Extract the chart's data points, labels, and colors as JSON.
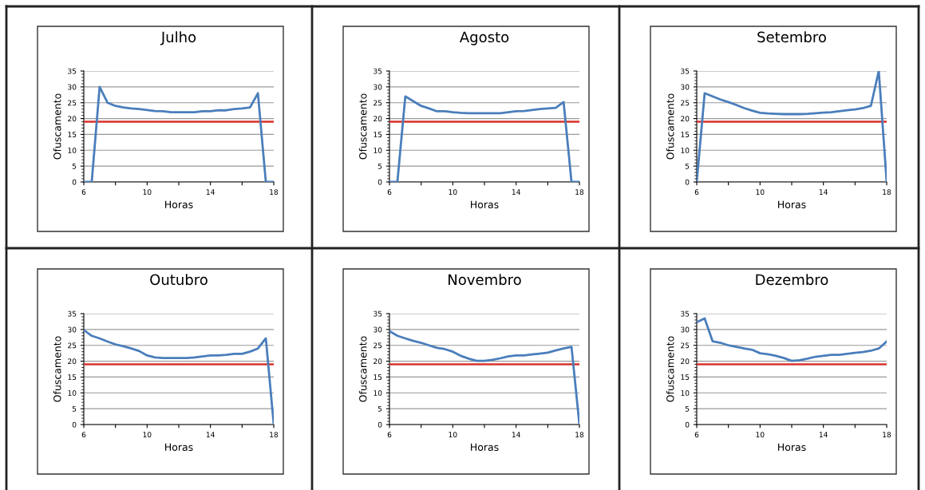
{
  "chart_data": [
    {
      "type": "line",
      "title": "Julho",
      "xlabel": "Horas",
      "ylabel": "Ofuscamento",
      "x": [
        6,
        6.5,
        7,
        7.5,
        8,
        8.5,
        9,
        9.5,
        10,
        10.5,
        11,
        11.5,
        12,
        12.5,
        13,
        13.5,
        14,
        14.5,
        15,
        15.5,
        16,
        16.5,
        17,
        17.5,
        18
      ],
      "series": [
        {
          "color": "#4a7ebb",
          "values": [
            0,
            0,
            30,
            25,
            24,
            23.5,
            23.2,
            23,
            22.7,
            22.4,
            22.3,
            22,
            22,
            22,
            22,
            22.3,
            22.3,
            22.6,
            22.6,
            23,
            23.2,
            23.5,
            28,
            0,
            0
          ]
        }
      ],
      "xlim": [
        6,
        18
      ],
      "xticks": [
        6,
        {
          "value": 8,
          "label": null
        },
        10,
        {
          "value": 12,
          "label": null
        },
        14,
        {
          "value": 16,
          "label": null
        },
        18
      ],
      "ylim": [
        0,
        35
      ],
      "yticks": [
        0,
        5,
        10,
        15,
        20,
        25,
        30,
        35
      ],
      "grid": "y",
      "marker": "none",
      "ref_lines": [
        {
          "axis": "y",
          "value": 19,
          "color": "#d9302a"
        }
      ]
    },
    {
      "type": "line",
      "title": "Agosto",
      "xlabel": "Horas",
      "ylabel": "Ofuscamento",
      "x": [
        6,
        6.5,
        7,
        7.5,
        8,
        8.5,
        9,
        9.5,
        10,
        10.5,
        11,
        11.5,
        12,
        12.5,
        13,
        13.5,
        14,
        14.5,
        15,
        15.5,
        16,
        16.5,
        17,
        17.5,
        18
      ],
      "series": [
        {
          "color": "#4a7ebb",
          "values": [
            0,
            0,
            27,
            25.5,
            24,
            23.2,
            22.3,
            22.3,
            22,
            21.8,
            21.7,
            21.7,
            21.7,
            21.7,
            21.7,
            22,
            22.3,
            22.4,
            22.7,
            23,
            23.2,
            23.4,
            25.2,
            0,
            0
          ]
        }
      ],
      "xlim": [
        6,
        18
      ],
      "xticks": [
        6,
        {
          "value": 8,
          "label": null
        },
        10,
        {
          "value": 12,
          "label": null
        },
        14,
        {
          "value": 16,
          "label": null
        },
        18
      ],
      "ylim": [
        0,
        35
      ],
      "yticks": [
        0,
        5,
        10,
        15,
        20,
        25,
        30,
        35
      ],
      "grid": "y",
      "marker": "none",
      "ref_lines": [
        {
          "axis": "y",
          "value": 19,
          "color": "#d9302a"
        }
      ]
    },
    {
      "type": "line",
      "title": "Setembro",
      "xlabel": "Horas",
      "ylabel": "Ofuscamento",
      "x": [
        6,
        6.5,
        7,
        7.5,
        8,
        8.5,
        9,
        9.5,
        10,
        10.5,
        11,
        11.5,
        12,
        12.5,
        13,
        13.5,
        14,
        14.5,
        15,
        15.5,
        16,
        16.5,
        17,
        17.5,
        18
      ],
      "series": [
        {
          "color": "#4a7ebb",
          "values": [
            0,
            28,
            27,
            26,
            25.2,
            24.3,
            23.3,
            22.5,
            21.8,
            21.6,
            21.5,
            21.4,
            21.4,
            21.4,
            21.5,
            21.7,
            21.9,
            22,
            22.3,
            22.6,
            22.9,
            23.3,
            24,
            35,
            0
          ]
        }
      ],
      "xlim": [
        6,
        18
      ],
      "xticks": [
        6,
        {
          "value": 8,
          "label": null
        },
        10,
        {
          "value": 12,
          "label": null
        },
        14,
        {
          "value": 16,
          "label": null
        },
        18
      ],
      "ylim": [
        0,
        35
      ],
      "yticks": [
        0,
        5,
        10,
        15,
        20,
        25,
        30,
        35
      ],
      "grid": "y",
      "marker": "none",
      "ref_lines": [
        {
          "axis": "y",
          "value": 19,
          "color": "#d9302a"
        }
      ]
    },
    {
      "type": "line",
      "title": "Outubro",
      "xlabel": "Horas",
      "ylabel": "Ofuscamento",
      "x": [
        6,
        6.5,
        7,
        7.5,
        8,
        8.5,
        9,
        9.5,
        10,
        10.5,
        11,
        11.5,
        12,
        12.5,
        13,
        13.5,
        14,
        14.5,
        15,
        15.5,
        16,
        16.5,
        17,
        17.5,
        18
      ],
      "series": [
        {
          "color": "#4a7ebb",
          "values": [
            29.8,
            28,
            27.2,
            26.2,
            25.3,
            24.7,
            24,
            23.2,
            21.8,
            21.2,
            21,
            21,
            21,
            21,
            21.2,
            21.5,
            21.8,
            21.8,
            22,
            22.3,
            22.3,
            23,
            24,
            27.2,
            0
          ]
        }
      ],
      "xlim": [
        6,
        18
      ],
      "xticks": [
        6,
        {
          "value": 8,
          "label": null
        },
        10,
        {
          "value": 12,
          "label": null
        },
        14,
        {
          "value": 16,
          "label": null
        },
        18
      ],
      "ylim": [
        0,
        35
      ],
      "yticks": [
        0,
        5,
        10,
        15,
        20,
        25,
        30,
        35
      ],
      "grid": "y",
      "marker": "none",
      "ref_lines": [
        {
          "axis": "y",
          "value": 19,
          "color": "#d9302a"
        }
      ]
    },
    {
      "type": "line",
      "title": "Novembro",
      "xlabel": "Horas",
      "ylabel": "Ofuscamento",
      "x": [
        6,
        6.5,
        7,
        7.5,
        8,
        8.5,
        9,
        9.5,
        10,
        10.5,
        11,
        11.5,
        12,
        12.5,
        13,
        13.5,
        14,
        14.5,
        15,
        15.5,
        16,
        16.5,
        17,
        17.5,
        18
      ],
      "series": [
        {
          "color": "#4a7ebb",
          "values": [
            29.5,
            28,
            27.2,
            26.4,
            25.8,
            25,
            24.2,
            23.8,
            23,
            21.7,
            20.8,
            20.1,
            20.1,
            20.4,
            20.9,
            21.5,
            21.8,
            21.8,
            22.1,
            22.4,
            22.7,
            23.4,
            24,
            24.5,
            0
          ]
        }
      ],
      "xlim": [
        6,
        18
      ],
      "xticks": [
        6,
        {
          "value": 8,
          "label": null
        },
        10,
        {
          "value": 12,
          "label": null
        },
        14,
        {
          "value": 16,
          "label": null
        },
        18
      ],
      "ylim": [
        0,
        35
      ],
      "yticks": [
        0,
        5,
        10,
        15,
        20,
        25,
        30,
        35
      ],
      "grid": "y",
      "marker": "none",
      "ref_lines": [
        {
          "axis": "y",
          "value": 19,
          "color": "#d9302a"
        }
      ]
    },
    {
      "type": "line",
      "title": "Dezembro",
      "xlabel": "Horas",
      "ylabel": "Ofuscamento",
      "x": [
        6,
        6.5,
        7,
        7.5,
        8,
        8.5,
        9,
        9.5,
        10,
        10.5,
        11,
        11.5,
        12,
        12.5,
        13,
        13.5,
        14,
        14.5,
        15,
        15.5,
        16,
        16.5,
        17,
        17.5,
        18
      ],
      "series": [
        {
          "color": "#4a7ebb",
          "values": [
            32.3,
            33.5,
            26.3,
            25.8,
            25,
            24.5,
            24,
            23.6,
            22.5,
            22.2,
            21.7,
            21,
            20.1,
            20.3,
            20.8,
            21.4,
            21.7,
            22,
            22,
            22.3,
            22.6,
            22.9,
            23.3,
            24,
            26.2
          ]
        }
      ],
      "xlim": [
        6,
        18
      ],
      "xticks": [
        6,
        {
          "value": 8,
          "label": null
        },
        10,
        {
          "value": 12,
          "label": null
        },
        14,
        {
          "value": 16,
          "label": null
        },
        18
      ],
      "ylim": [
        0,
        35
      ],
      "yticks": [
        0,
        5,
        10,
        15,
        20,
        25,
        30,
        35
      ],
      "grid": "y",
      "marker": "none",
      "ref_lines": [
        {
          "axis": "y",
          "value": 19,
          "color": "#d9302a"
        }
      ]
    }
  ]
}
